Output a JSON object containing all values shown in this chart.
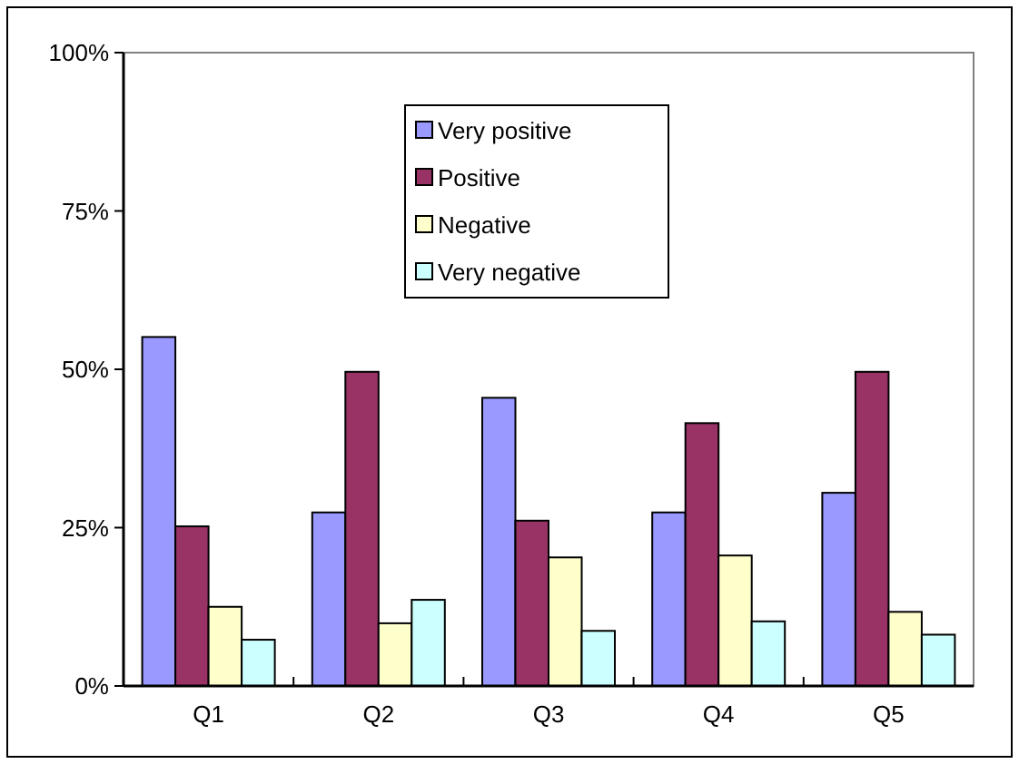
{
  "chart_data": {
    "type": "bar",
    "categories": [
      "Q1",
      "Q2",
      "Q3",
      "Q4",
      "Q5"
    ],
    "series": [
      {
        "name": "Very positive",
        "color": "#9999ff",
        "values": [
          55.1,
          27.4,
          45.5,
          27.4,
          30.5
        ]
      },
      {
        "name": "Positive",
        "color": "#993366",
        "values": [
          25.2,
          49.6,
          26.1,
          41.5,
          49.6
        ]
      },
      {
        "name": "Negative",
        "color": "#ffffcc",
        "values": [
          12.5,
          9.9,
          20.3,
          20.6,
          11.7
        ]
      },
      {
        "name": "Very negative",
        "color": "#ccffff",
        "values": [
          7.3,
          13.6,
          8.7,
          10.2,
          8.1
        ]
      }
    ],
    "ylim": [
      0,
      100
    ],
    "yticks": [
      {
        "value": 0,
        "label": "0%"
      },
      {
        "value": 25,
        "label": "25%"
      },
      {
        "value": 50,
        "label": "50%"
      },
      {
        "value": 75,
        "label": "75%"
      },
      {
        "value": 100,
        "label": "100%"
      }
    ],
    "grid": false,
    "legend": "top"
  }
}
